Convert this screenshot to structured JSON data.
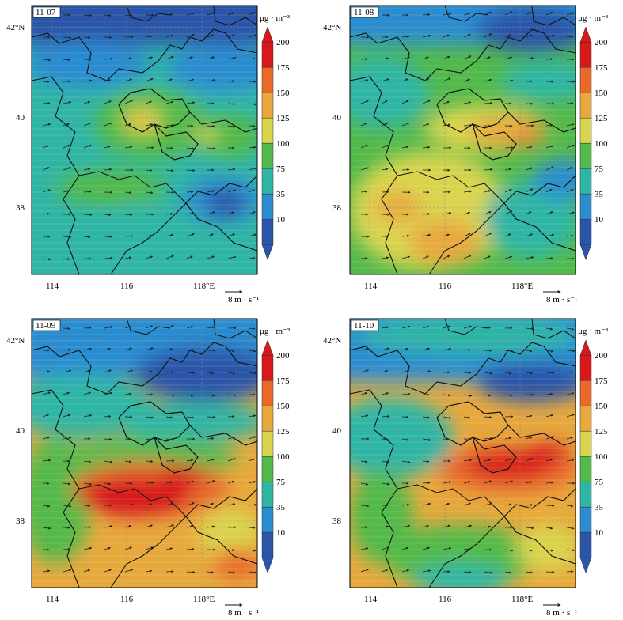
{
  "panels": [
    {
      "date": "11-07"
    },
    {
      "date": "11-08"
    },
    {
      "date": "11-09"
    },
    {
      "date": "11-10"
    }
  ],
  "lat_labels": [
    "42°N",
    "40",
    "38"
  ],
  "lon_labels": [
    "114",
    "116",
    "118°E"
  ],
  "colorbar": {
    "unit": "μg · m⁻³",
    "levels": [
      "200",
      "175",
      "150",
      "125",
      "100",
      "75",
      "35",
      "10"
    ],
    "colors": [
      "#d7191c",
      "#e8692a",
      "#e7a83c",
      "#d9d44e",
      "#52b94a",
      "#2fb5a5",
      "#2b8cd0",
      "#2b55a8"
    ]
  },
  "wind_reference": "8 m · s⁻¹",
  "surface_colors": {
    "deep_blue": "#2b55a8",
    "blue": "#2b8cd0",
    "teal": "#2fb5a5",
    "green": "#52b94a",
    "yellow": "#d9d44e",
    "orange": "#e7a83c",
    "dark_orange": "#e8692a",
    "red": "#d7191c"
  }
}
